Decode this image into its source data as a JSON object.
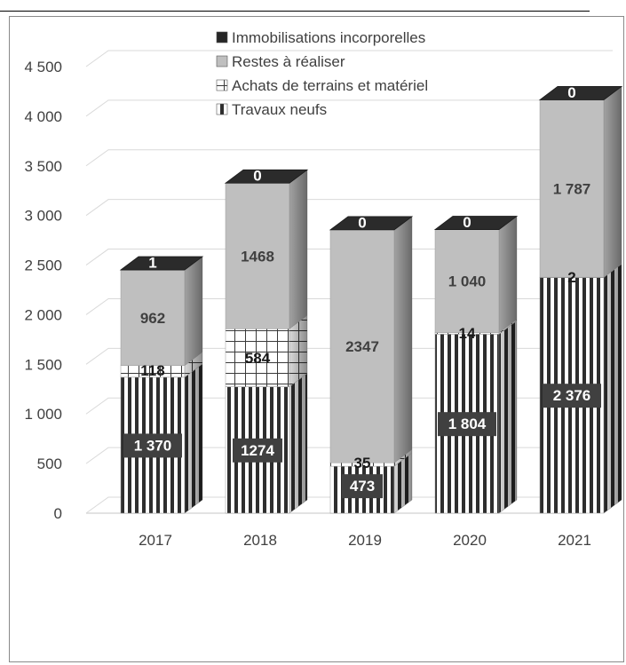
{
  "chart_data": {
    "type": "bar",
    "stacked": true,
    "three_d": true,
    "categories": [
      "2017",
      "2018",
      "2019",
      "2020",
      "2021"
    ],
    "ylim": [
      0,
      4500
    ],
    "yticks": [
      "0",
      "500",
      "1 000",
      "1 500",
      "2 000",
      "2 500",
      "3 000",
      "3 500",
      "4 000",
      "4 500"
    ],
    "legend_position": "top-inside",
    "grid": true,
    "series": [
      {
        "name": "Travaux neufs",
        "values": [
          1370,
          1274,
          473,
          1804,
          2376
        ],
        "labels": [
          "1 370",
          "1274",
          "473",
          "1 804",
          "2 376"
        ],
        "pattern": "vertical-stripes",
        "color": "#3a3a3a"
      },
      {
        "name": "Achats de terrains et matériel",
        "values": [
          118,
          584,
          35,
          14,
          2
        ],
        "labels": [
          "118",
          "584",
          "35",
          "14",
          "2"
        ],
        "pattern": "grid",
        "color": "#ffffff"
      },
      {
        "name": "Restes à réaliser",
        "values": [
          962,
          1468,
          2347,
          1040,
          1787
        ],
        "labels": [
          "962",
          "1468",
          "2347",
          "1 040",
          "1 787"
        ],
        "pattern": "solid",
        "color": "#bfbfbf"
      },
      {
        "name": "Immobilisations incorporelles",
        "values": [
          1,
          0,
          0,
          0,
          0
        ],
        "labels": [
          "1",
          "0",
          "0",
          "0",
          "0"
        ],
        "pattern": "solid",
        "color": "#262626"
      }
    ]
  }
}
